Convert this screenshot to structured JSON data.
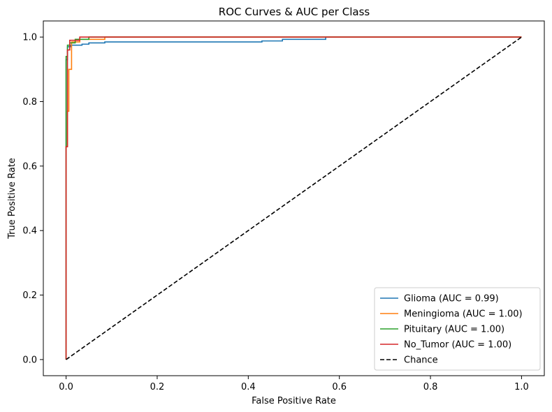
{
  "chart_data": {
    "type": "line",
    "title": "ROC Curves & AUC per Class",
    "xlabel": "False Positive Rate",
    "ylabel": "True Positive Rate",
    "xlim": [
      -0.05,
      1.05
    ],
    "ylim": [
      -0.05,
      1.05
    ],
    "xticks": [
      "0.0",
      "0.2",
      "0.4",
      "0.6",
      "0.8",
      "1.0"
    ],
    "yticks": [
      "0.0",
      "0.2",
      "0.4",
      "0.6",
      "0.8",
      "1.0"
    ],
    "grid": false,
    "legend_position": "bottom-right",
    "series": [
      {
        "name": "Glioma (AUC = 0.99)",
        "color": "#1f77b4",
        "style": "solid",
        "x": [
          0.0,
          0.0,
          0.003,
          0.003,
          0.01,
          0.01,
          0.035,
          0.035,
          0.05,
          0.05,
          0.085,
          0.085,
          0.43,
          0.43,
          0.475,
          0.475,
          0.57,
          0.57,
          1.0
        ],
        "y": [
          0.0,
          0.93,
          0.93,
          0.97,
          0.97,
          0.975,
          0.975,
          0.978,
          0.978,
          0.982,
          0.982,
          0.985,
          0.985,
          0.988,
          0.988,
          0.993,
          0.993,
          1.0,
          1.0
        ]
      },
      {
        "name": "Meningioma (AUC = 1.00)",
        "color": "#ff7f0e",
        "style": "solid",
        "x": [
          0.0,
          0.0,
          0.003,
          0.003,
          0.006,
          0.006,
          0.012,
          0.012,
          0.03,
          0.03,
          0.085,
          0.085,
          1.0
        ],
        "y": [
          0.0,
          0.66,
          0.66,
          0.77,
          0.77,
          0.9,
          0.9,
          0.985,
          0.985,
          0.993,
          0.993,
          1.0,
          1.0
        ]
      },
      {
        "name": "Pituitary (AUC = 1.00)",
        "color": "#2ca02c",
        "style": "solid",
        "x": [
          0.0,
          0.0,
          0.003,
          0.003,
          0.008,
          0.008,
          0.02,
          0.02,
          0.05,
          0.05,
          1.0
        ],
        "y": [
          0.0,
          0.94,
          0.94,
          0.975,
          0.975,
          0.982,
          0.982,
          0.993,
          0.993,
          1.0,
          1.0
        ]
      },
      {
        "name": "No_Tumor (AUC = 1.00)",
        "color": "#d62728",
        "style": "solid",
        "x": [
          0.0,
          0.0,
          0.003,
          0.003,
          0.008,
          0.008,
          0.03,
          0.03,
          1.0
        ],
        "y": [
          0.0,
          0.66,
          0.66,
          0.96,
          0.96,
          0.99,
          0.99,
          1.0,
          1.0
        ]
      },
      {
        "name": "Chance",
        "color": "#000000",
        "style": "dashed",
        "x": [
          0.0,
          1.0
        ],
        "y": [
          0.0,
          1.0
        ]
      }
    ]
  }
}
